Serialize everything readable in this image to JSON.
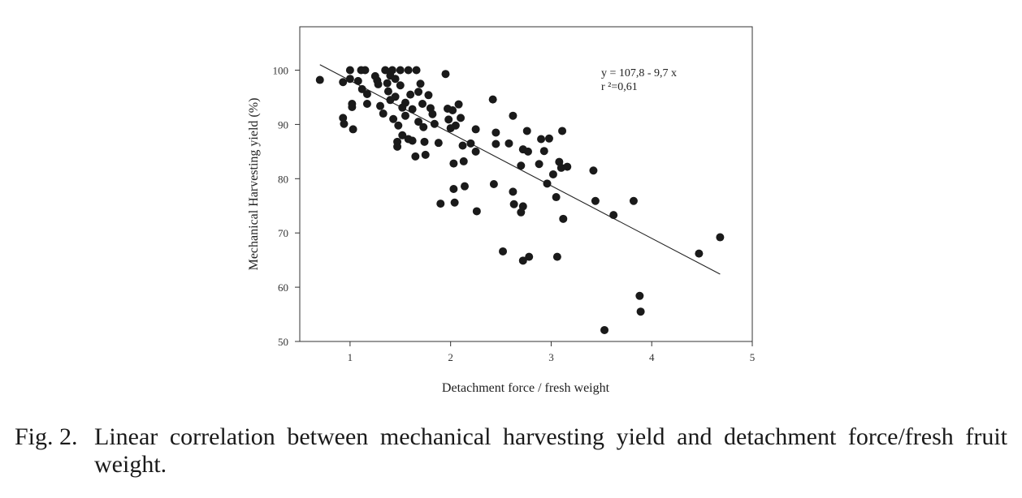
{
  "caption": {
    "label": "Fig. 2.",
    "text": "Linear correlation between mechanical harvesting yield and detachment force/fresh fruit weight."
  },
  "chart_data": {
    "type": "scatter",
    "xlabel": "Detachment force / fresh weight",
    "ylabel": "Mechanical Harvesting yield (%)",
    "xlim": [
      0.5,
      5
    ],
    "ylim": [
      50,
      108
    ],
    "xticks": [
      1,
      2,
      3,
      4,
      5
    ],
    "yticks": [
      50,
      60,
      70,
      80,
      90,
      100
    ],
    "grid": false,
    "equation": "y = 107,8 - 9,7 x",
    "r2_label": "r ²=0,61",
    "regression": {
      "intercept": 107.8,
      "slope": -9.7,
      "x_range": [
        0.7,
        4.68
      ]
    },
    "point_color": "#1a1a1a",
    "points": [
      [
        0.7,
        98.2
      ],
      [
        0.93,
        97.8
      ],
      [
        0.93,
        91.2
      ],
      [
        0.94,
        90.1
      ],
      [
        1.0,
        100.0
      ],
      [
        1.0,
        98.4
      ],
      [
        1.02,
        93.8
      ],
      [
        1.02,
        93.2
      ],
      [
        1.03,
        89.1
      ],
      [
        1.08,
        98.0
      ],
      [
        1.11,
        100.0
      ],
      [
        1.12,
        96.5
      ],
      [
        1.15,
        100.0
      ],
      [
        1.17,
        95.6
      ],
      [
        1.17,
        93.8
      ],
      [
        1.25,
        98.9
      ],
      [
        1.27,
        98.1
      ],
      [
        1.28,
        97.4
      ],
      [
        1.3,
        93.4
      ],
      [
        1.33,
        92.0
      ],
      [
        1.35,
        100.0
      ],
      [
        1.37,
        97.6
      ],
      [
        1.38,
        96.1
      ],
      [
        1.4,
        99.0
      ],
      [
        1.4,
        94.5
      ],
      [
        1.42,
        100.0
      ],
      [
        1.43,
        91.0
      ],
      [
        1.45,
        98.4
      ],
      [
        1.45,
        95.1
      ],
      [
        1.47,
        86.8
      ],
      [
        1.47,
        85.9
      ],
      [
        1.48,
        89.8
      ],
      [
        1.5,
        100.0
      ],
      [
        1.5,
        97.2
      ],
      [
        1.52,
        93.1
      ],
      [
        1.52,
        88.0
      ],
      [
        1.55,
        94.0
      ],
      [
        1.55,
        91.6
      ],
      [
        1.58,
        100.0
      ],
      [
        1.58,
        87.3
      ],
      [
        1.6,
        95.5
      ],
      [
        1.62,
        92.8
      ],
      [
        1.62,
        87.0
      ],
      [
        1.65,
        84.1
      ],
      [
        1.66,
        100.0
      ],
      [
        1.68,
        96.0
      ],
      [
        1.68,
        90.5
      ],
      [
        1.7,
        97.5
      ],
      [
        1.72,
        93.8
      ],
      [
        1.73,
        89.5
      ],
      [
        1.74,
        86.8
      ],
      [
        1.75,
        84.4
      ],
      [
        1.78,
        95.4
      ],
      [
        1.8,
        93.0
      ],
      [
        1.82,
        91.9
      ],
      [
        1.84,
        90.1
      ],
      [
        1.88,
        86.6
      ],
      [
        1.9,
        75.4
      ],
      [
        1.95,
        99.3
      ],
      [
        1.97,
        92.9
      ],
      [
        1.98,
        90.9
      ],
      [
        2.0,
        89.3
      ],
      [
        2.02,
        92.6
      ],
      [
        2.03,
        82.8
      ],
      [
        2.03,
        78.1
      ],
      [
        2.04,
        75.6
      ],
      [
        2.05,
        89.8
      ],
      [
        2.08,
        93.7
      ],
      [
        2.1,
        91.2
      ],
      [
        2.12,
        86.1
      ],
      [
        2.13,
        83.2
      ],
      [
        2.14,
        78.6
      ],
      [
        2.2,
        86.5
      ],
      [
        2.25,
        89.1
      ],
      [
        2.25,
        85.0
      ],
      [
        2.26,
        74.0
      ],
      [
        2.42,
        94.6
      ],
      [
        2.43,
        79.0
      ],
      [
        2.45,
        88.5
      ],
      [
        2.45,
        86.4
      ],
      [
        2.52,
        66.6
      ],
      [
        2.58,
        86.5
      ],
      [
        2.62,
        91.6
      ],
      [
        2.62,
        77.6
      ],
      [
        2.63,
        75.3
      ],
      [
        2.7,
        82.4
      ],
      [
        2.7,
        73.8
      ],
      [
        2.72,
        85.4
      ],
      [
        2.72,
        74.9
      ],
      [
        2.72,
        64.9
      ],
      [
        2.76,
        88.8
      ],
      [
        2.77,
        85.0
      ],
      [
        2.78,
        65.6
      ],
      [
        2.88,
        82.7
      ],
      [
        2.9,
        87.3
      ],
      [
        2.93,
        85.1
      ],
      [
        2.96,
        79.1
      ],
      [
        2.98,
        87.4
      ],
      [
        3.02,
        80.8
      ],
      [
        3.05,
        76.6
      ],
      [
        3.06,
        65.6
      ],
      [
        3.08,
        83.1
      ],
      [
        3.1,
        82.0
      ],
      [
        3.11,
        88.8
      ],
      [
        3.12,
        72.6
      ],
      [
        3.16,
        82.2
      ],
      [
        3.42,
        81.5
      ],
      [
        3.44,
        75.9
      ],
      [
        3.53,
        52.1
      ],
      [
        3.62,
        73.3
      ],
      [
        3.82,
        75.9
      ],
      [
        3.88,
        58.4
      ],
      [
        3.89,
        55.5
      ],
      [
        4.47,
        66.2
      ],
      [
        4.68,
        69.2
      ]
    ]
  }
}
